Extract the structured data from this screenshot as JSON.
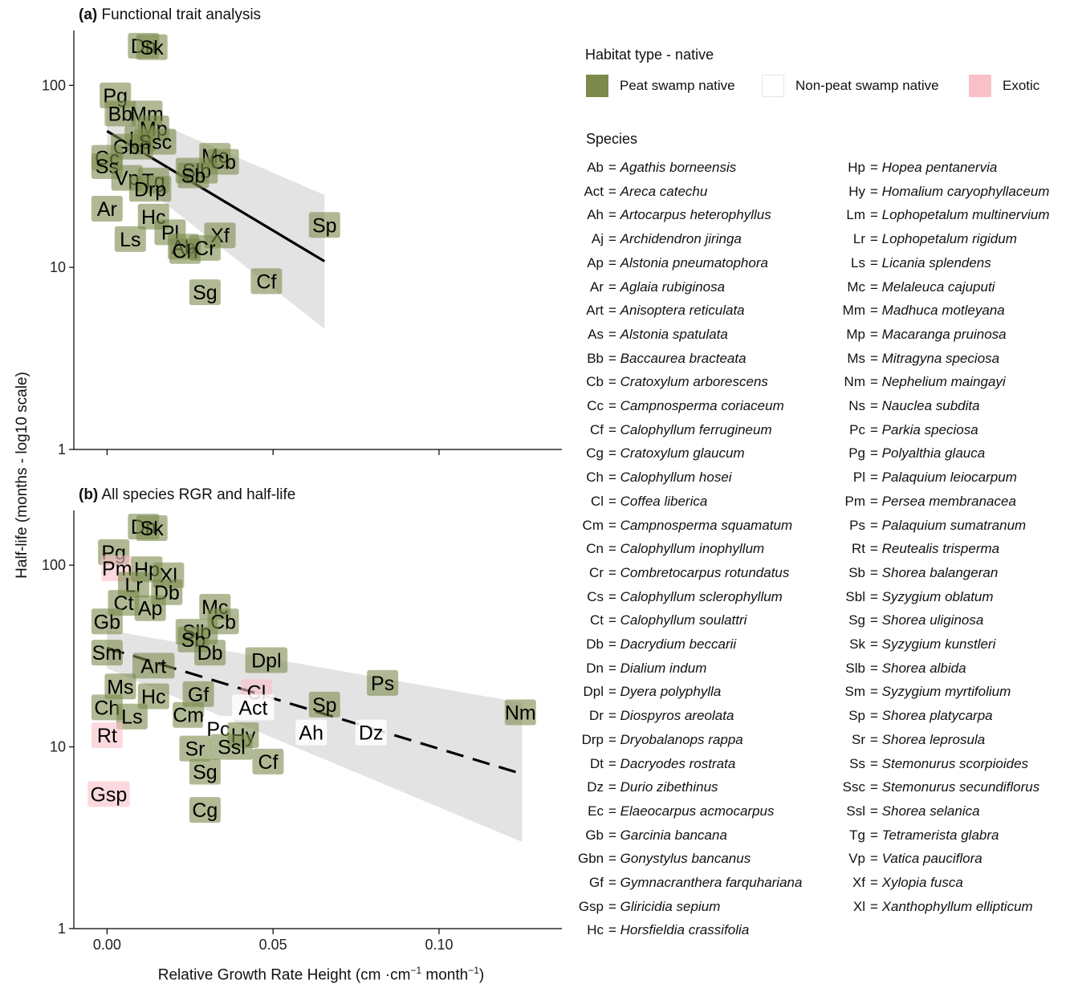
{
  "figure": {
    "ylabel": "Half-life (months - log10 scale)",
    "xlabel_main": "Relative Growth Rate Height (cm ·cm",
    "xlabel_sup1": "−1",
    "xlabel_mid": " month",
    "xlabel_sup2": "−1",
    "xlabel_end": ")"
  },
  "colors": {
    "peat": "#7c8b4d",
    "nonpeat": "#ffffff",
    "exotic": "#f9c0c8",
    "ribbon": "#d9d9d9",
    "line": "#000000"
  },
  "legend": {
    "habitat_title": "Habitat type - native",
    "habitat_items": [
      {
        "label": "Peat swamp native",
        "key": "peat"
      },
      {
        "label": "Non-peat swamp native",
        "key": "nonpeat"
      },
      {
        "label": "Exotic",
        "key": "exotic"
      }
    ],
    "species_title": "Species",
    "species_left": [
      {
        "code": "Ab",
        "name": "Agathis borneensis"
      },
      {
        "code": "Act",
        "name": "Areca catechu"
      },
      {
        "code": "Ah",
        "name": "Artocarpus heterophyllus"
      },
      {
        "code": "Aj",
        "name": "Archidendron jiringa"
      },
      {
        "code": "Ap",
        "name": "Alstonia pneumatophora"
      },
      {
        "code": "Ar",
        "name": "Aglaia rubiginosa"
      },
      {
        "code": "Art",
        "name": "Anisoptera reticulata"
      },
      {
        "code": "As",
        "name": "Alstonia spatulata"
      },
      {
        "code": "Bb",
        "name": "Baccaurea bracteata"
      },
      {
        "code": "Cb",
        "name": "Cratoxylum arborescens"
      },
      {
        "code": "Cc",
        "name": "Campnosperma coriaceum"
      },
      {
        "code": "Cf",
        "name": "Calophyllum ferrugineum"
      },
      {
        "code": "Cg",
        "name": "Cratoxylum glaucum"
      },
      {
        "code": "Ch",
        "name": "Calophyllum hosei"
      },
      {
        "code": "Cl",
        "name": "Coffea liberica"
      },
      {
        "code": "Cm",
        "name": "Campnosperma squamatum"
      },
      {
        "code": "Cn",
        "name": "Calophyllum inophyllum"
      },
      {
        "code": "Cr",
        "name": "Combretocarpus rotundatus"
      },
      {
        "code": "Cs",
        "name": "Calophyllum sclerophyllum"
      },
      {
        "code": "Ct",
        "name": "Calophyllum soulattri"
      },
      {
        "code": "Db",
        "name": "Dacrydium beccarii"
      },
      {
        "code": "Dn",
        "name": "Dialium indum"
      },
      {
        "code": "Dpl",
        "name": "Dyera polyphylla"
      },
      {
        "code": "Dr",
        "name": "Diospyros areolata"
      },
      {
        "code": "Drp",
        "name": "Dryobalanops rappa"
      },
      {
        "code": "Dt",
        "name": "Dacryodes rostrata"
      },
      {
        "code": "Dz",
        "name": "Durio zibethinus"
      },
      {
        "code": "Ec",
        "name": "Elaeocarpus acmocarpus"
      },
      {
        "code": "Gb",
        "name": "Garcinia bancana"
      },
      {
        "code": "Gbn",
        "name": "Gonystylus bancanus"
      },
      {
        "code": "Gf",
        "name": "Gymnacranthera farquhariana"
      },
      {
        "code": "Gsp",
        "name": "Gliricidia sepium"
      },
      {
        "code": "Hc",
        "name": "Horsfieldia crassifolia"
      }
    ],
    "species_right": [
      {
        "code": "Hp",
        "name": "Hopea pentanervia"
      },
      {
        "code": "Hy",
        "name": "Homalium caryophyllaceum"
      },
      {
        "code": "Lm",
        "name": "Lophopetalum multinervium"
      },
      {
        "code": "Lr",
        "name": "Lophopetalum rigidum"
      },
      {
        "code": "Ls",
        "name": "Licania splendens"
      },
      {
        "code": "Mc",
        "name": "Melaleuca cajuputi"
      },
      {
        "code": "Mm",
        "name": "Madhuca motleyana"
      },
      {
        "code": "Mp",
        "name": "Macaranga pruinosa"
      },
      {
        "code": "Ms",
        "name": "Mitragyna speciosa"
      },
      {
        "code": "Nm",
        "name": "Nephelium maingayi"
      },
      {
        "code": "Ns",
        "name": "Nauclea subdita"
      },
      {
        "code": "Pc",
        "name": "Parkia speciosa"
      },
      {
        "code": "Pg",
        "name": "Polyalthia glauca"
      },
      {
        "code": "Pl",
        "name": "Palaquium leiocarpum"
      },
      {
        "code": "Pm",
        "name": "Persea membranacea"
      },
      {
        "code": "Ps",
        "name": "Palaquium sumatranum"
      },
      {
        "code": "Rt",
        "name": "Reutealis trisperma"
      },
      {
        "code": "Sb",
        "name": "Shorea balangeran"
      },
      {
        "code": "Sbl",
        "name": "Syzygium oblatum"
      },
      {
        "code": "Sg",
        "name": "Shorea uliginosa"
      },
      {
        "code": "Sk",
        "name": "Syzygium kunstleri"
      },
      {
        "code": "Slb",
        "name": "Shorea albida"
      },
      {
        "code": "Sm",
        "name": "Syzygium myrtifolium"
      },
      {
        "code": "Sp",
        "name": "Shorea platycarpa"
      },
      {
        "code": "Sr",
        "name": "Shorea leprosula"
      },
      {
        "code": "Ss",
        "name": "Stemonurus scorpioides"
      },
      {
        "code": "Ssc",
        "name": "Stemonurus secundiflorus"
      },
      {
        "code": "Ssl",
        "name": "Shorea selanica"
      },
      {
        "code": "Tg",
        "name": "Tetramerista glabra"
      },
      {
        "code": "Vp",
        "name": "Vatica pauciflora"
      },
      {
        "code": "Xf",
        "name": "Xylopia fusca"
      },
      {
        "code": "Xl",
        "name": "Xanthophyllum ellipticum"
      }
    ]
  },
  "chart_data": [
    {
      "type": "scatter",
      "panel": "a",
      "title_bold": "(a)",
      "title": "Functional trait analysis",
      "x_scale": "linear",
      "y_scale": "log10",
      "xlim": [
        -0.01,
        0.137
      ],
      "ylim": [
        1,
        200
      ],
      "x_ticks": [
        0.0,
        0.05,
        0.1
      ],
      "x_tick_labels": [
        "",
        "",
        ""
      ],
      "y_ticks": [
        1,
        10,
        100
      ],
      "y_tick_labels": [
        "1",
        "10",
        "100"
      ],
      "fit": {
        "style": "solid",
        "x": [
          0.0,
          0.0655
        ],
        "y": [
          56,
          10.8
        ]
      },
      "ribbon": {
        "x": [
          0.0,
          0.0655
        ],
        "lower": [
          40,
          4.6
        ],
        "upper": [
          82,
          25
        ]
      },
      "points": [
        {
          "label": "Dn",
          "x": 0.011,
          "y": 165,
          "group": "peat"
        },
        {
          "label": "Sk",
          "x": 0.0135,
          "y": 162,
          "group": "peat"
        },
        {
          "label": "Pg",
          "x": 0.0025,
          "y": 88,
          "group": "peat"
        },
        {
          "label": "Bb",
          "x": 0.004,
          "y": 70,
          "group": "peat"
        },
        {
          "label": "Mm",
          "x": 0.012,
          "y": 70,
          "group": "peat"
        },
        {
          "label": "Mp",
          "x": 0.014,
          "y": 58,
          "group": "peat"
        },
        {
          "label": "Ln",
          "x": 0.01,
          "y": 51,
          "group": "peat"
        },
        {
          "label": "Ssc",
          "x": 0.0145,
          "y": 49,
          "group": "peat"
        },
        {
          "label": "Gbn",
          "x": 0.0075,
          "y": 46,
          "group": "peat"
        },
        {
          "label": "Cc",
          "x": 0.0,
          "y": 40,
          "group": "peat"
        },
        {
          "label": "Ss",
          "x": 0.0,
          "y": 36,
          "group": "peat"
        },
        {
          "label": "Mc",
          "x": 0.0325,
          "y": 41,
          "group": "peat"
        },
        {
          "label": "Cb",
          "x": 0.035,
          "y": 38,
          "group": "peat"
        },
        {
          "label": "Slb",
          "x": 0.027,
          "y": 34,
          "group": "peat"
        },
        {
          "label": "Sb",
          "x": 0.026,
          "y": 32,
          "group": "peat"
        },
        {
          "label": "Vp",
          "x": 0.006,
          "y": 31,
          "group": "peat"
        },
        {
          "label": "Tg",
          "x": 0.014,
          "y": 30,
          "group": "peat"
        },
        {
          "label": "Drp",
          "x": 0.013,
          "y": 27,
          "group": "peat"
        },
        {
          "label": "Ar",
          "x": 0.0,
          "y": 21,
          "group": "peat"
        },
        {
          "label": "Hc",
          "x": 0.014,
          "y": 19,
          "group": "peat"
        },
        {
          "label": "Pl",
          "x": 0.019,
          "y": 15.6,
          "group": "peat"
        },
        {
          "label": "Xf",
          "x": 0.034,
          "y": 15,
          "group": "peat"
        },
        {
          "label": "Ls",
          "x": 0.007,
          "y": 14.3,
          "group": "peat"
        },
        {
          "label": "Ab",
          "x": 0.023,
          "y": 13,
          "group": "peat"
        },
        {
          "label": "Ch",
          "x": 0.0235,
          "y": 12.3,
          "group": "peat"
        },
        {
          "label": "Cr",
          "x": 0.0295,
          "y": 12.8,
          "group": "peat"
        },
        {
          "label": "Sp",
          "x": 0.0655,
          "y": 17.1,
          "group": "peat"
        },
        {
          "label": "Cf",
          "x": 0.048,
          "y": 8.4,
          "group": "peat"
        },
        {
          "label": "Sg",
          "x": 0.0295,
          "y": 7.3,
          "group": "peat"
        }
      ]
    },
    {
      "type": "scatter",
      "panel": "b",
      "title_bold": "(b)",
      "title": "All species RGR and half-life",
      "x_scale": "linear",
      "y_scale": "log10",
      "xlim": [
        -0.01,
        0.137
      ],
      "ylim": [
        1,
        200
      ],
      "x_ticks": [
        0.0,
        0.05,
        0.1
      ],
      "x_tick_labels": [
        "0.00",
        "0.05",
        "0.10"
      ],
      "y_ticks": [
        1,
        10,
        100
      ],
      "y_tick_labels": [
        "1",
        "10",
        "100"
      ],
      "fit": {
        "style": "dashed",
        "x": [
          0.0,
          0.125
        ],
        "y": [
          35,
          7.1
        ]
      },
      "ribbon": {
        "x": [
          0.0,
          0.125
        ],
        "lower": [
          27,
          3.0
        ],
        "upper": [
          44,
          17.5
        ]
      },
      "points": [
        {
          "label": "Dn",
          "x": 0.011,
          "y": 163,
          "group": "peat"
        },
        {
          "label": "Sk",
          "x": 0.0135,
          "y": 160,
          "group": "peat"
        },
        {
          "label": "Pg",
          "x": 0.002,
          "y": 118,
          "group": "peat"
        },
        {
          "label": "Pm",
          "x": 0.003,
          "y": 96,
          "group": "exotic"
        },
        {
          "label": "Hp",
          "x": 0.012,
          "y": 95,
          "group": "peat"
        },
        {
          "label": "Xl",
          "x": 0.0185,
          "y": 88,
          "group": "peat"
        },
        {
          "label": "Lr",
          "x": 0.008,
          "y": 78,
          "group": "peat"
        },
        {
          "label": "Db",
          "x": 0.018,
          "y": 71,
          "group": "peat"
        },
        {
          "label": "Ct",
          "x": 0.005,
          "y": 62,
          "group": "peat"
        },
        {
          "label": "Ap",
          "x": 0.013,
          "y": 58,
          "group": "peat"
        },
        {
          "label": "Gb",
          "x": 0.0,
          "y": 49,
          "group": "peat"
        },
        {
          "label": "Mc",
          "x": 0.0325,
          "y": 59,
          "group": "peat"
        },
        {
          "label": "Cb",
          "x": 0.035,
          "y": 49,
          "group": "peat"
        },
        {
          "label": "Slb",
          "x": 0.027,
          "y": 43,
          "group": "peat"
        },
        {
          "label": "Sb",
          "x": 0.026,
          "y": 39,
          "group": "peat"
        },
        {
          "label": "Sm",
          "x": 0.0,
          "y": 33,
          "group": "peat"
        },
        {
          "label": "Art",
          "x": 0.014,
          "y": 28,
          "group": "peat"
        },
        {
          "label": "Db",
          "x": 0.031,
          "y": 33,
          "group": "peat"
        },
        {
          "label": "Dpl",
          "x": 0.048,
          "y": 30,
          "group": "peat"
        },
        {
          "label": "Ps",
          "x": 0.083,
          "y": 22.5,
          "group": "peat"
        },
        {
          "label": "Ms",
          "x": 0.004,
          "y": 21.5,
          "group": "peat"
        },
        {
          "label": "Hc",
          "x": 0.014,
          "y": 19,
          "group": "peat"
        },
        {
          "label": "Gf",
          "x": 0.0275,
          "y": 19.5,
          "group": "peat"
        },
        {
          "label": "Cl",
          "x": 0.045,
          "y": 20,
          "group": "exotic"
        },
        {
          "label": "Act",
          "x": 0.044,
          "y": 16.5,
          "group": "nonpeat"
        },
        {
          "label": "Sp",
          "x": 0.0655,
          "y": 17.1,
          "group": "peat"
        },
        {
          "label": "Nm",
          "x": 0.1245,
          "y": 15.5,
          "group": "peat"
        },
        {
          "label": "Ch",
          "x": 0.0,
          "y": 16.5,
          "group": "peat"
        },
        {
          "label": "Ls",
          "x": 0.0075,
          "y": 14.7,
          "group": "peat"
        },
        {
          "label": "Cm",
          "x": 0.0245,
          "y": 15,
          "group": "peat"
        },
        {
          "label": "Pc",
          "x": 0.0335,
          "y": 12.6,
          "group": "nonpeat"
        },
        {
          "label": "Hy",
          "x": 0.041,
          "y": 11.6,
          "group": "peat"
        },
        {
          "label": "Ah",
          "x": 0.0615,
          "y": 12,
          "group": "nonpeat"
        },
        {
          "label": "Dz",
          "x": 0.0795,
          "y": 12,
          "group": "nonpeat"
        },
        {
          "label": "Rt",
          "x": 0.0,
          "y": 11.6,
          "group": "exotic"
        },
        {
          "label": "Sr",
          "x": 0.0265,
          "y": 9.8,
          "group": "peat"
        },
        {
          "label": "Ssl",
          "x": 0.0375,
          "y": 10,
          "group": "peat"
        },
        {
          "label": "Cf",
          "x": 0.0485,
          "y": 8.3,
          "group": "peat"
        },
        {
          "label": "Sg",
          "x": 0.0295,
          "y": 7.3,
          "group": "peat"
        },
        {
          "label": "Gsp",
          "x": 0.0005,
          "y": 5.5,
          "group": "exotic"
        },
        {
          "label": "Cg",
          "x": 0.0295,
          "y": 4.5,
          "group": "peat"
        }
      ]
    }
  ]
}
